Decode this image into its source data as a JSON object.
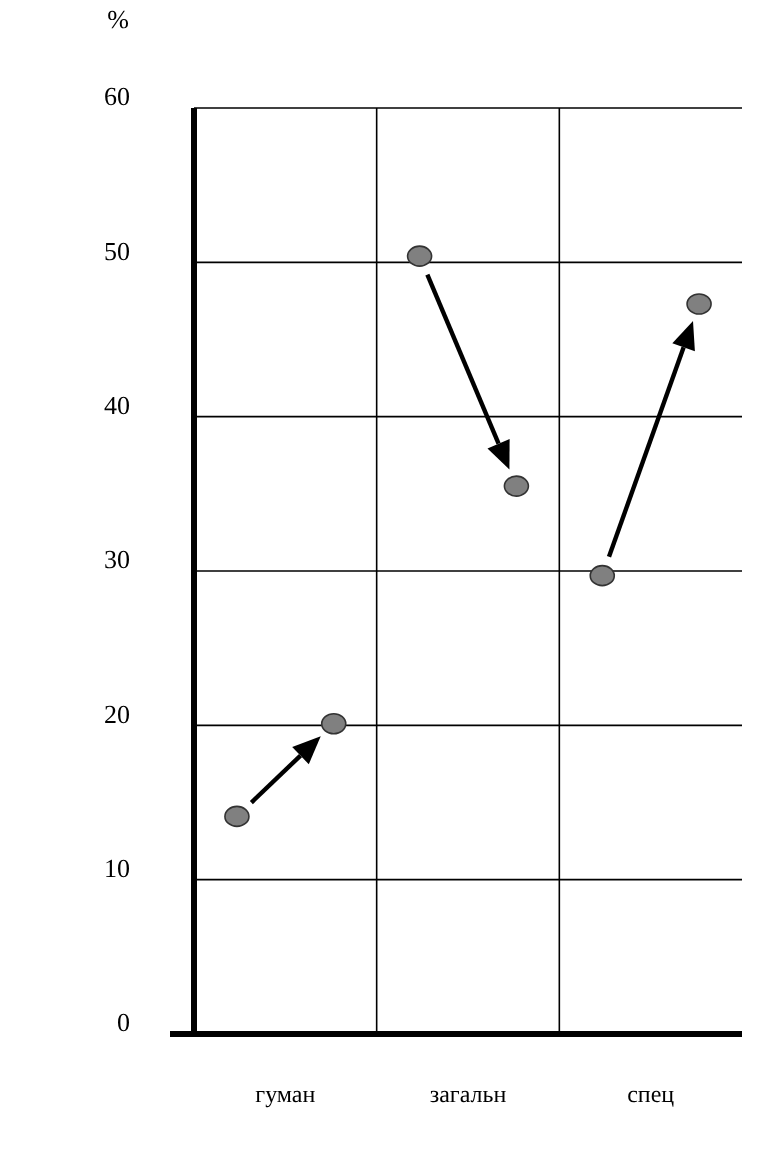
{
  "chart_data": {
    "type": "scatter",
    "ylabel": "%",
    "categories": [
      "гуман",
      "загальн",
      "спец"
    ],
    "series": [
      {
        "color": "#808080",
        "values": [
          14.1,
          50.4,
          29.7
        ]
      },
      {
        "color": "#808080",
        "values": [
          20.1,
          35.5,
          47.3
        ]
      }
    ],
    "ylim": [
      0,
      60
    ],
    "yticks": [
      0,
      10,
      20,
      30,
      40,
      50,
      60
    ],
    "grid": true,
    "marker": "circle"
  }
}
